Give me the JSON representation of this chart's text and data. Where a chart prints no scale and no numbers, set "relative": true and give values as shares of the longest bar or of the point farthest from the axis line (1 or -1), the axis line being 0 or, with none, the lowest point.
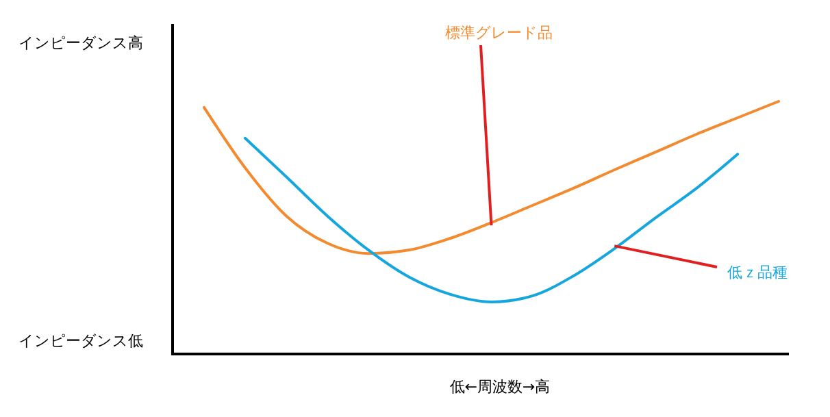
{
  "chart_data": {
    "type": "line",
    "relative": true,
    "xlabel": "低←周波数→高",
    "annotations": [
      "インピーダンス高",
      "インピーダンス低"
    ],
    "categories": [
      null,
      null,
      null,
      null,
      null,
      null,
      null,
      null,
      null,
      null,
      null,
      null,
      null,
      null,
      null
    ],
    "series": [
      {
        "name": "標準グレード品",
        "color": "#f28a30",
        "values": [
          0.976,
          0.737,
          0.547,
          0.439,
          0.398,
          0.412,
          0.458,
          0.52,
          0.588,
          0.656,
          0.729,
          0.799,
          0.87,
          0.935,
          1
        ]
      },
      {
        "name": "低ｚ品種",
        "color": "#16a6de",
        "values": [
          null,
          0.854,
          0.702,
          0.547,
          0.412,
          0.304,
          0.236,
          0.206,
          0.23,
          0.309,
          0.417,
          0.539,
          0.656,
          0.791,
          null
        ]
      }
    ]
  }
}
